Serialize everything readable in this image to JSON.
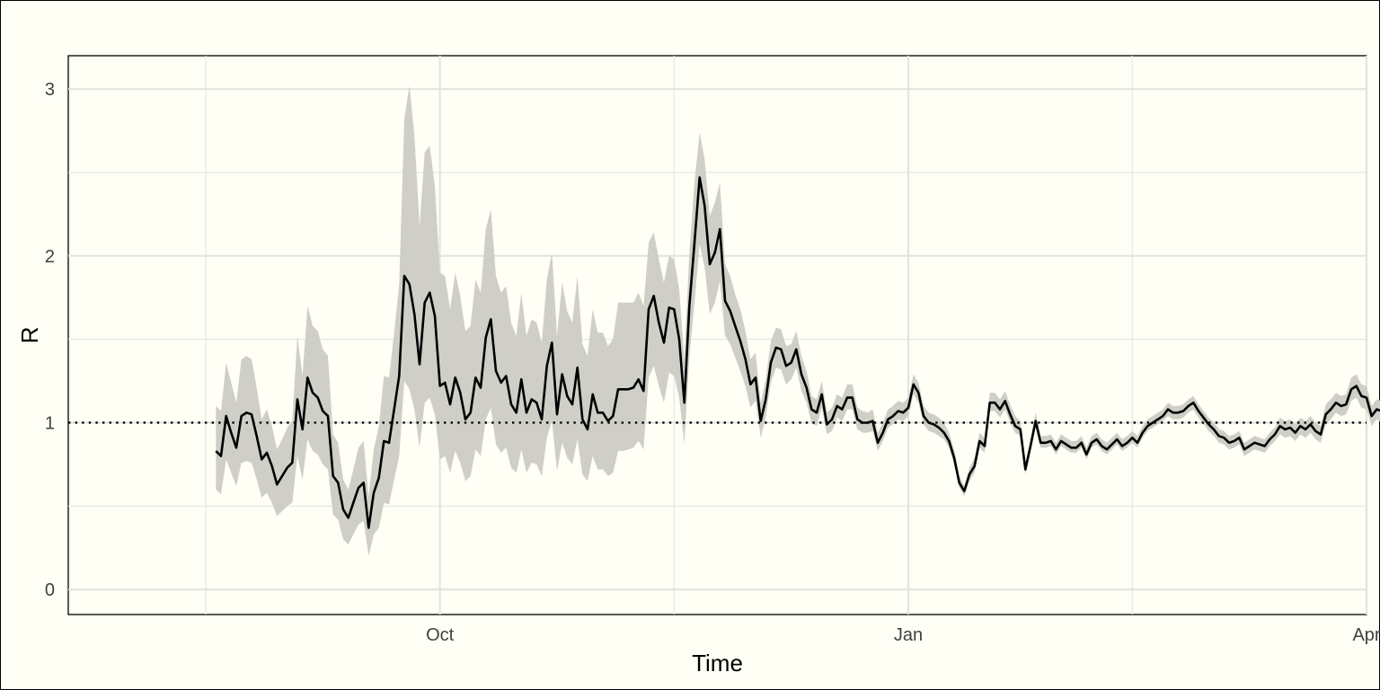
{
  "chart_data": {
    "type": "line",
    "title": "",
    "xlabel": "Time",
    "ylabel": "R",
    "x_start": "2021-08-18",
    "x_end": "2022-03-19",
    "xlim": [
      "2021-07-20",
      "2022-04-01"
    ],
    "ylim": [
      -0.15,
      3.2
    ],
    "x_ticks": [
      {
        "date": "2021-10-01",
        "label": "Oct"
      },
      {
        "date": "2022-01-01",
        "label": "Jan"
      },
      {
        "date": "2022-04-01",
        "label": "Apr"
      }
    ],
    "x_minor_ticks": [
      "2021-08-16",
      "2021-11-16",
      "2022-02-14"
    ],
    "y_ticks": [
      0,
      1,
      2,
      3
    ],
    "y_minor_ticks": [
      0.5,
      1.5,
      2.5
    ],
    "reference_line": 1,
    "grid": true,
    "series": [
      {
        "color": "#000000",
        "fill_color": "#cfcfc8",
        "values": [
          0.83,
          0.8,
          1.04,
          0.94,
          0.85,
          1.04,
          1.06,
          1.05,
          0.92,
          0.78,
          0.82,
          0.74,
          0.63,
          0.68,
          0.73,
          0.76,
          1.14,
          0.96,
          1.27,
          1.18,
          1.15,
          1.07,
          1.04,
          0.68,
          0.64,
          0.48,
          0.43,
          0.52,
          0.61,
          0.64,
          0.37,
          0.58,
          0.67,
          0.89,
          0.88,
          1.08,
          1.28,
          1.88,
          1.83,
          1.65,
          1.35,
          1.72,
          1.78,
          1.64,
          1.22,
          1.24,
          1.11,
          1.27,
          1.18,
          1.02,
          1.06,
          1.27,
          1.21,
          1.51,
          1.62,
          1.31,
          1.24,
          1.28,
          1.11,
          1.06,
          1.26,
          1.06,
          1.14,
          1.12,
          1.02,
          1.34,
          1.48,
          1.05,
          1.29,
          1.16,
          1.11,
          1.33,
          1.02,
          0.96,
          1.17,
          1.06,
          1.06,
          1.01,
          1.04,
          1.2,
          1.2,
          1.2,
          1.21,
          1.26,
          1.19,
          1.68,
          1.76,
          1.6,
          1.48,
          1.69,
          1.68,
          1.5,
          1.12,
          1.7,
          2.08,
          2.47,
          2.3,
          1.95,
          2.02,
          2.16,
          1.73,
          1.67,
          1.58,
          1.49,
          1.38,
          1.23,
          1.27,
          1.01,
          1.14,
          1.36,
          1.45,
          1.44,
          1.34,
          1.36,
          1.44,
          1.29,
          1.21,
          1.08,
          1.06,
          1.17,
          0.99,
          1.02,
          1.1,
          1.08,
          1.15,
          1.15,
          1.02,
          1.0,
          1.0,
          1.01,
          0.88,
          0.94,
          1.02,
          1.04,
          1.07,
          1.06,
          1.09,
          1.23,
          1.18,
          1.04,
          1.0,
          0.99,
          0.97,
          0.94,
          0.89,
          0.79,
          0.64,
          0.59,
          0.69,
          0.74,
          0.89,
          0.86,
          1.12,
          1.12,
          1.08,
          1.13,
          1.05,
          0.98,
          0.96,
          0.72,
          0.86,
          1.01,
          0.88,
          0.88,
          0.89,
          0.84,
          0.89,
          0.87,
          0.85,
          0.85,
          0.88,
          0.81,
          0.88,
          0.9,
          0.86,
          0.84,
          0.87,
          0.9,
          0.86,
          0.88,
          0.91,
          0.88,
          0.94,
          0.98,
          1.0,
          1.02,
          1.04,
          1.08,
          1.06,
          1.06,
          1.07,
          1.1,
          1.12,
          1.07,
          1.03,
          0.99,
          0.96,
          0.92,
          0.91,
          0.88,
          0.89,
          0.91,
          0.84,
          0.86,
          0.88,
          0.87,
          0.86,
          0.9,
          0.93,
          0.98,
          0.96,
          0.97,
          0.94,
          0.98,
          0.96,
          0.99,
          0.95,
          0.93,
          1.05,
          1.08,
          1.12,
          1.1,
          1.11,
          1.2,
          1.22,
          1.16,
          1.15,
          1.04,
          1.08,
          1.07,
          1.07,
          1.12,
          1.14,
          1.22,
          1.28,
          1.16,
          1.11,
          0.99
        ],
        "lower": [
          0.6,
          0.57,
          0.78,
          0.7,
          0.62,
          0.76,
          0.77,
          0.76,
          0.66,
          0.55,
          0.58,
          0.52,
          0.44,
          0.47,
          0.5,
          0.52,
          0.8,
          0.66,
          0.9,
          0.83,
          0.81,
          0.75,
          0.72,
          0.45,
          0.42,
          0.3,
          0.27,
          0.33,
          0.39,
          0.41,
          0.2,
          0.33,
          0.37,
          0.52,
          0.51,
          0.66,
          0.8,
          1.25,
          1.2,
          1.08,
          0.85,
          1.12,
          1.15,
          1.05,
          0.78,
          0.8,
          0.7,
          0.83,
          0.76,
          0.65,
          0.68,
          0.84,
          0.8,
          1.02,
          1.09,
          0.87,
          0.82,
          0.85,
          0.73,
          0.7,
          0.84,
          0.7,
          0.76,
          0.75,
          0.68,
          0.91,
          1.01,
          0.71,
          0.88,
          0.79,
          0.75,
          0.9,
          0.69,
          0.65,
          0.8,
          0.72,
          0.72,
          0.68,
          0.7,
          0.83,
          0.83,
          0.84,
          0.85,
          0.89,
          0.84,
          1.27,
          1.34,
          1.22,
          1.12,
          1.3,
          1.28,
          1.15,
          0.87,
          1.39,
          1.72,
          2.07,
          1.93,
          1.65,
          1.72,
          1.85,
          1.52,
          1.47,
          1.39,
          1.31,
          1.22,
          1.09,
          1.13,
          0.91,
          1.03,
          1.24,
          1.33,
          1.32,
          1.23,
          1.26,
          1.33,
          1.19,
          1.12,
          1.0,
          0.98,
          1.09,
          0.93,
          0.95,
          1.03,
          1.01,
          1.08,
          1.08,
          0.96,
          0.94,
          0.94,
          0.95,
          0.83,
          0.89,
          0.97,
          0.99,
          1.02,
          1.01,
          1.04,
          1.17,
          1.12,
          0.99,
          0.95,
          0.94,
          0.92,
          0.9,
          0.85,
          0.75,
          0.61,
          0.56,
          0.65,
          0.7,
          0.85,
          0.82,
          1.07,
          1.07,
          1.03,
          1.08,
          1.0,
          0.94,
          0.92,
          0.69,
          0.83,
          0.97,
          0.85,
          0.85,
          0.86,
          0.81,
          0.86,
          0.84,
          0.82,
          0.82,
          0.85,
          0.78,
          0.85,
          0.87,
          0.83,
          0.81,
          0.84,
          0.87,
          0.83,
          0.85,
          0.88,
          0.85,
          0.91,
          0.95,
          0.97,
          0.99,
          1.01,
          1.04,
          1.02,
          1.02,
          1.03,
          1.06,
          1.08,
          1.03,
          0.99,
          0.95,
          0.92,
          0.88,
          0.87,
          0.84,
          0.85,
          0.87,
          0.8,
          0.82,
          0.84,
          0.83,
          0.82,
          0.86,
          0.89,
          0.93,
          0.91,
          0.92,
          0.89,
          0.93,
          0.91,
          0.94,
          0.9,
          0.88,
          0.99,
          1.02,
          1.06,
          1.04,
          1.05,
          1.13,
          1.15,
          1.09,
          1.08,
          0.98,
          1.02,
          1.0,
          1.0,
          1.05,
          1.07,
          1.14,
          1.19,
          1.08,
          1.03,
          0.91
        ],
        "upper": [
          1.1,
          1.07,
          1.36,
          1.24,
          1.12,
          1.38,
          1.4,
          1.38,
          1.21,
          1.02,
          1.08,
          0.98,
          0.84,
          0.9,
          0.97,
          1.01,
          1.52,
          1.28,
          1.7,
          1.58,
          1.55,
          1.44,
          1.4,
          0.93,
          0.88,
          0.66,
          0.6,
          0.72,
          0.85,
          0.89,
          0.56,
          0.84,
          0.98,
          1.28,
          1.27,
          1.54,
          1.83,
          2.82,
          3.02,
          2.72,
          2.18,
          2.62,
          2.66,
          2.42,
          1.9,
          1.88,
          1.68,
          1.9,
          1.76,
          1.55,
          1.58,
          1.86,
          1.78,
          2.16,
          2.28,
          1.88,
          1.78,
          1.82,
          1.6,
          1.52,
          1.78,
          1.52,
          1.62,
          1.6,
          1.48,
          1.86,
          2.02,
          1.52,
          1.84,
          1.67,
          1.6,
          1.88,
          1.47,
          1.4,
          1.68,
          1.54,
          1.54,
          1.46,
          1.5,
          1.72,
          1.72,
          1.72,
          1.72,
          1.78,
          1.7,
          2.08,
          2.14,
          1.98,
          1.84,
          2.0,
          1.98,
          1.8,
          1.38,
          2.02,
          2.44,
          2.74,
          2.58,
          2.24,
          2.32,
          2.44,
          1.95,
          1.88,
          1.77,
          1.68,
          1.55,
          1.38,
          1.42,
          1.12,
          1.26,
          1.49,
          1.57,
          1.56,
          1.46,
          1.47,
          1.55,
          1.4,
          1.31,
          1.16,
          1.14,
          1.25,
          1.06,
          1.09,
          1.17,
          1.15,
          1.23,
          1.23,
          1.09,
          1.07,
          1.06,
          1.08,
          0.94,
          1.0,
          1.08,
          1.1,
          1.13,
          1.12,
          1.15,
          1.29,
          1.24,
          1.1,
          1.06,
          1.05,
          1.03,
          1.0,
          0.94,
          0.84,
          0.68,
          0.62,
          0.73,
          0.79,
          0.94,
          0.91,
          1.18,
          1.18,
          1.14,
          1.19,
          1.11,
          1.04,
          1.01,
          0.76,
          0.9,
          1.06,
          0.92,
          0.92,
          0.93,
          0.88,
          0.93,
          0.91,
          0.89,
          0.89,
          0.92,
          0.85,
          0.92,
          0.94,
          0.9,
          0.88,
          0.91,
          0.94,
          0.9,
          0.92,
          0.95,
          0.92,
          0.98,
          1.02,
          1.04,
          1.06,
          1.08,
          1.12,
          1.1,
          1.1,
          1.11,
          1.14,
          1.16,
          1.11,
          1.07,
          1.03,
          1.0,
          0.96,
          0.95,
          0.92,
          0.93,
          0.95,
          0.88,
          0.9,
          0.92,
          0.91,
          0.9,
          0.94,
          0.97,
          1.03,
          1.01,
          1.02,
          0.99,
          1.03,
          1.01,
          1.04,
          1.0,
          0.98,
          1.11,
          1.14,
          1.18,
          1.16,
          1.17,
          1.27,
          1.29,
          1.23,
          1.22,
          1.1,
          1.14,
          1.13,
          1.14,
          1.19,
          1.21,
          1.3,
          1.37,
          1.24,
          1.19,
          1.07
        ]
      }
    ]
  }
}
